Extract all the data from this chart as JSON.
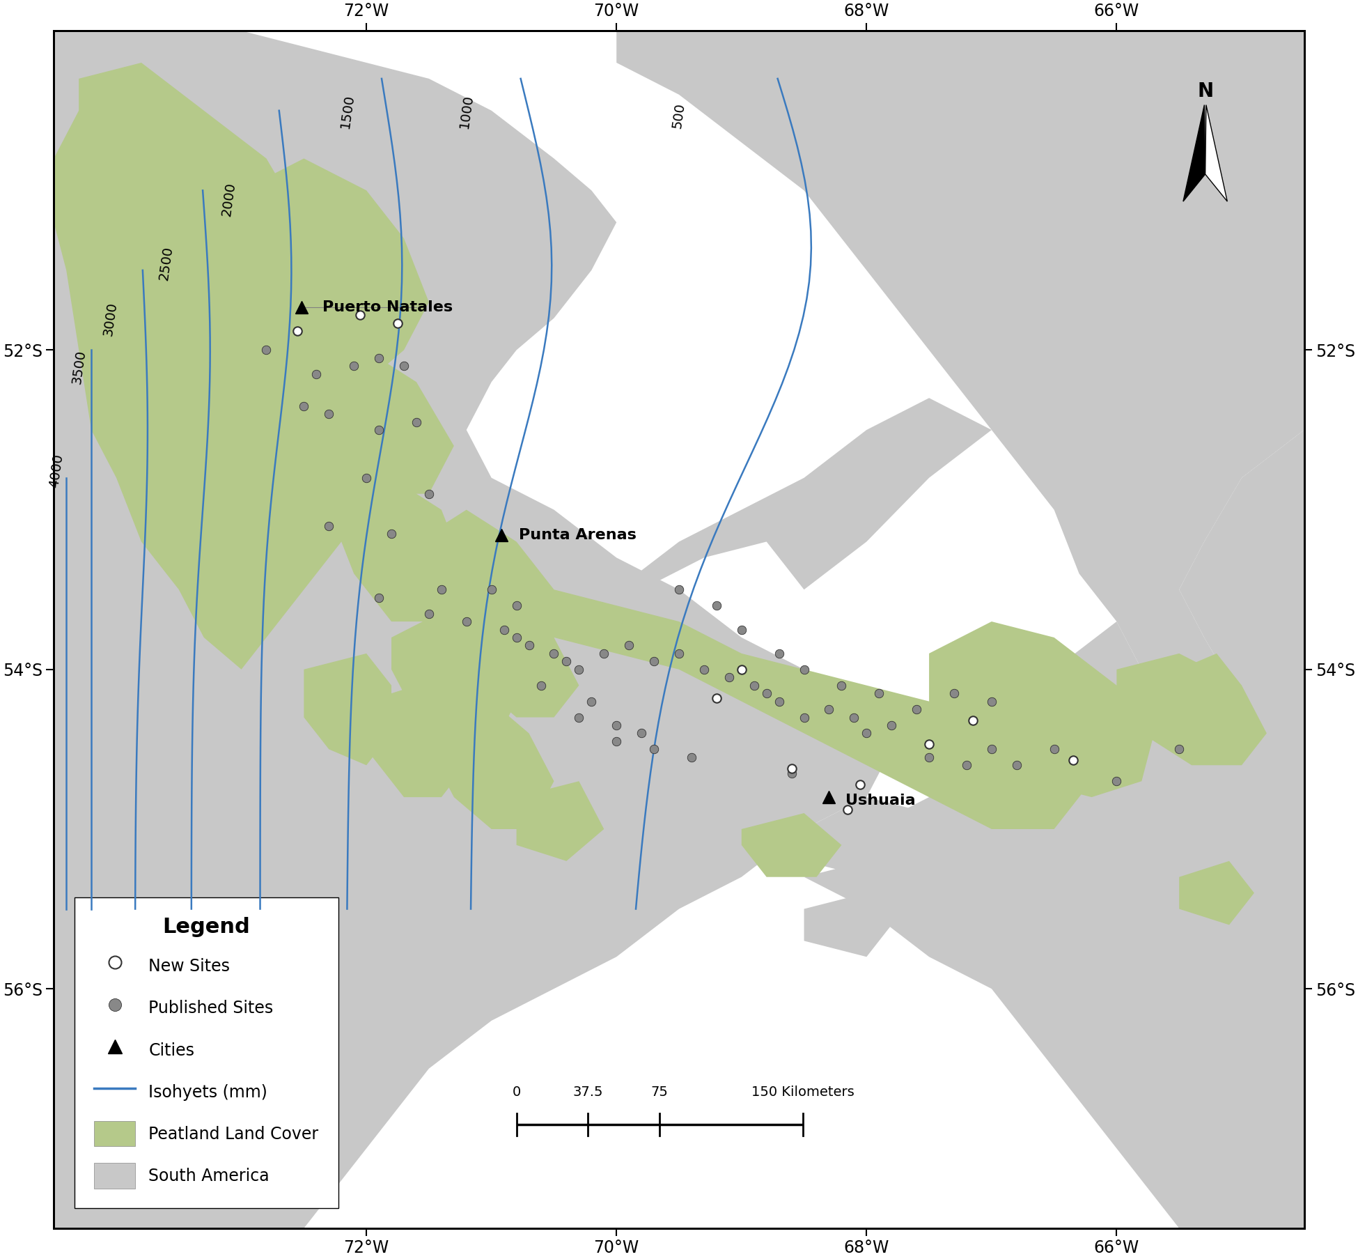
{
  "map_xlim": [
    -74.5,
    -64.5
  ],
  "map_ylim": [
    -57.5,
    -50.0
  ],
  "background_color": "#ffffff",
  "land_color": "#c8c8c8",
  "peatland_color": "#b5c98a",
  "isohyet_color": "#3a7abf",
  "xticks": [
    -72,
    -70,
    -68,
    -66
  ],
  "yticks": [
    -52,
    -54,
    -56
  ],
  "cities": [
    {
      "name": "Puerto Natales",
      "lon": -72.52,
      "lat": -51.73
    },
    {
      "name": "Punta Arenas",
      "lon": -70.92,
      "lat": -53.16
    },
    {
      "name": "Ushuaia",
      "lon": -68.3,
      "lat": -54.8
    }
  ],
  "new_sites_lon": [
    -72.55,
    -72.05,
    -71.75,
    -69.0,
    -69.2,
    -68.6,
    -68.15,
    -68.05,
    -67.5,
    -67.15,
    -66.35
  ],
  "new_sites_lat": [
    -51.88,
    -51.78,
    -51.83,
    -54.0,
    -54.18,
    -54.62,
    -54.88,
    -54.72,
    -54.47,
    -54.32,
    -54.57
  ],
  "pub_sites_lon": [
    -72.4,
    -72.1,
    -71.9,
    -71.7,
    -72.3,
    -71.9,
    -71.6,
    -72.0,
    -71.5,
    -72.3,
    -71.8,
    -71.9,
    -71.4,
    -71.0,
    -70.8,
    -70.9,
    -70.8,
    -70.5,
    -70.3,
    -70.1,
    -69.9,
    -69.7,
    -69.5,
    -69.3,
    -69.1,
    -68.9,
    -68.8,
    -68.7,
    -68.5,
    -68.3,
    -68.1,
    -68.0,
    -67.8,
    -67.5,
    -67.2,
    -67.0,
    -66.8,
    -66.5,
    -66.0,
    -65.5,
    -70.2,
    -70.0,
    -69.8,
    -69.5,
    -69.2,
    -69.0,
    -68.7,
    -68.5,
    -68.2,
    -67.9,
    -67.6,
    -67.3,
    -67.0,
    -72.8,
    -72.5,
    -71.5,
    -71.2,
    -70.7,
    -70.4,
    -70.6,
    -70.3,
    -70.0,
    -69.7,
    -69.4,
    -68.6
  ],
  "pub_sites_lat": [
    -52.15,
    -52.1,
    -52.05,
    -52.1,
    -52.4,
    -52.5,
    -52.45,
    -52.8,
    -52.9,
    -53.1,
    -53.15,
    -53.55,
    -53.5,
    -53.5,
    -53.6,
    -53.75,
    -53.8,
    -53.9,
    -54.0,
    -53.9,
    -53.85,
    -53.95,
    -53.9,
    -54.0,
    -54.05,
    -54.1,
    -54.15,
    -54.2,
    -54.3,
    -54.25,
    -54.3,
    -54.4,
    -54.35,
    -54.55,
    -54.6,
    -54.5,
    -54.6,
    -54.5,
    -54.7,
    -54.5,
    -54.2,
    -54.35,
    -54.4,
    -53.5,
    -53.6,
    -53.75,
    -53.9,
    -54.0,
    -54.1,
    -54.15,
    -54.25,
    -54.15,
    -54.2,
    -52.0,
    -52.35,
    -53.65,
    -53.7,
    -53.85,
    -53.95,
    -54.1,
    -54.3,
    -54.45,
    -54.5,
    -54.55,
    -54.65
  ]
}
